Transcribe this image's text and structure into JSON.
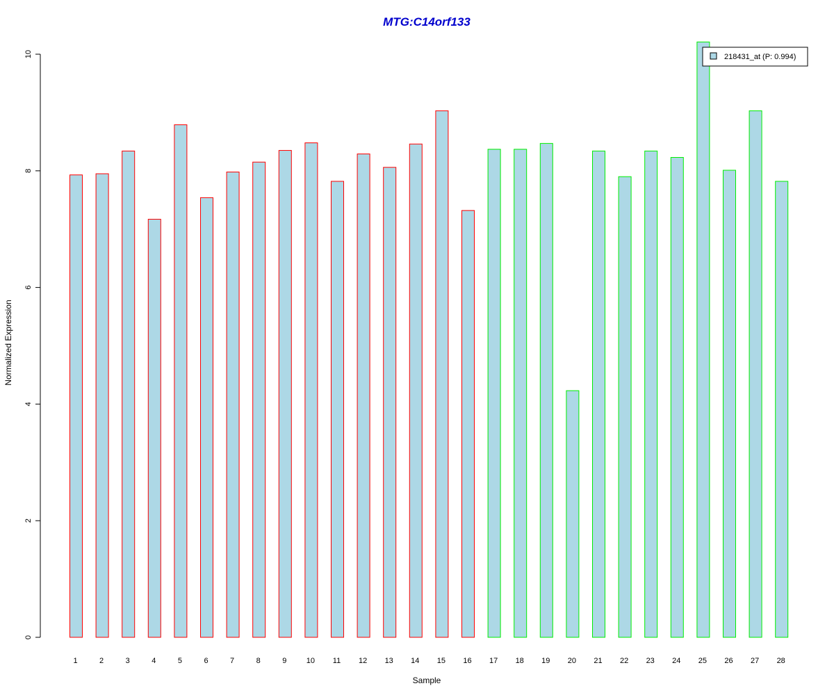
{
  "chart_data": {
    "type": "bar",
    "title": "MTG:C14orf133",
    "xlabel": "Sample",
    "ylabel": "Normalized Expression",
    "categories": [
      "1",
      "2",
      "3",
      "4",
      "5",
      "6",
      "7",
      "8",
      "9",
      "10",
      "11",
      "12",
      "13",
      "14",
      "15",
      "16",
      "17",
      "18",
      "19",
      "20",
      "21",
      "22",
      "23",
      "24",
      "25",
      "26",
      "27",
      "28"
    ],
    "series": [
      {
        "name": "218431_at (P: 0.994)",
        "values": [
          7.93,
          7.95,
          8.34,
          7.17,
          8.79,
          7.54,
          7.98,
          8.15,
          8.35,
          8.48,
          7.82,
          8.29,
          8.06,
          8.46,
          9.03,
          7.32,
          8.37,
          8.37,
          8.47,
          4.23,
          8.34,
          7.9,
          8.34,
          8.23,
          10.21,
          8.01,
          9.03,
          7.82
        ]
      }
    ],
    "group_outline_colors": [
      "#ff0000",
      "#ff0000",
      "#ff0000",
      "#ff0000",
      "#ff0000",
      "#ff0000",
      "#ff0000",
      "#ff0000",
      "#ff0000",
      "#ff0000",
      "#ff0000",
      "#ff0000",
      "#ff0000",
      "#ff0000",
      "#ff0000",
      "#ff0000",
      "#00ee00",
      "#00ee00",
      "#00ee00",
      "#00ee00",
      "#00ee00",
      "#00ee00",
      "#00ee00",
      "#00ee00",
      "#00ee00",
      "#00ee00",
      "#00ee00",
      "#00ee00"
    ],
    "bar_fill_color": "#add8e6",
    "title_color": "#0000cd",
    "y_ticks": [
      "0",
      "2",
      "4",
      "6",
      "8",
      "10"
    ],
    "ylim": [
      0,
      10.2
    ],
    "grid": false,
    "legend_position": "top-right"
  }
}
